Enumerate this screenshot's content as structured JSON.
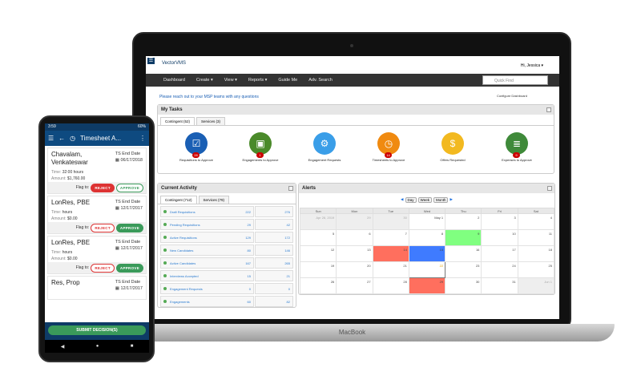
{
  "laptop": {
    "brand": "MacBook"
  },
  "app": {
    "logo": "VectorVMS",
    "user": "Hi, Jessica ▾",
    "nav": [
      "Dashboard",
      "Create ▾",
      "View ▾",
      "Reports ▾",
      "Guide Me",
      "Adv. Search"
    ],
    "quick_find_placeholder": "Quick Find",
    "message": "Please reach out to your MSP teams with any questions",
    "configure": "Configure Dashboard"
  },
  "my_tasks": {
    "title": "My Tasks",
    "tabs": [
      "Contingent (52)",
      "Services (3)"
    ],
    "items": [
      {
        "label": "Requisitions to Approve",
        "badge": "28",
        "color": "#1a5fb4",
        "icon": "checkbox-icon"
      },
      {
        "label": "Engagements to Approve",
        "badge": "1",
        "color": "#4a8a2a",
        "icon": "id-card-icon"
      },
      {
        "label": "Engagement Requests",
        "badge": "",
        "color": "#3a9ee8",
        "icon": "user-gear-icon"
      },
      {
        "label": "Timesheets to Approve",
        "badge": "14",
        "color": "#f08a10",
        "icon": "clock-icon"
      },
      {
        "label": "Offers Requested",
        "badge": "",
        "color": "#f2b920",
        "icon": "briefcase-icon"
      },
      {
        "label": "Expenses to Approve",
        "badge": "9",
        "color": "#3f8a3a",
        "icon": "receipt-icon"
      }
    ]
  },
  "current_activity": {
    "title": "Current Activity",
    "tabs": [
      "Contingent (712)",
      "Services (79)"
    ],
    "rows": [
      {
        "label": "Draft Requisitions",
        "a": "222",
        "b": "276"
      },
      {
        "label": "Pending Requisitions",
        "a": "29",
        "b": "42"
      },
      {
        "label": "Active Requisitions",
        "a": "129",
        "b": "172"
      },
      {
        "label": "New Candidates",
        "a": "80",
        "b": "146"
      },
      {
        "label": "Active Candidates",
        "a": "167",
        "b": "265"
      },
      {
        "label": "Interviews Accepted",
        "a": "15",
        "b": "21"
      },
      {
        "label": "Engagement Requests",
        "a": "0",
        "b": "0"
      },
      {
        "label": "Engagements",
        "a": "60",
        "b": "82"
      }
    ]
  },
  "alerts": {
    "title": "Alerts",
    "views": [
      "Day",
      "Week",
      "Month"
    ],
    "days": [
      "Sun",
      "Mon",
      "Tue",
      "Wed",
      "Thu",
      "Fri",
      "Sat"
    ],
    "weeks": [
      [
        "Apr 28, 2019",
        "29",
        "30",
        "May 1",
        "2",
        "3",
        "4"
      ],
      [
        "5",
        "6",
        "7",
        "8",
        "9",
        "10",
        "11"
      ],
      [
        "12",
        "13",
        "14",
        "15",
        "16",
        "17",
        "18"
      ],
      [
        "19",
        "20",
        "21",
        "22",
        "23",
        "24",
        "25"
      ],
      [
        "26",
        "27",
        "28",
        "29",
        "30",
        "31",
        "Jun 1"
      ]
    ],
    "highlights": {
      "9": "#80ff80",
      "14": "#ff6f5e",
      "15": "#3f7bff",
      "29": "#ff6f5e"
    },
    "today": "22"
  },
  "phone": {
    "time": "3:59",
    "battery": "60%",
    "title": "Timesheet A...",
    "date_label": "TS End Date",
    "flag_label": "Flag to:",
    "reject": "REJECT",
    "approve": "APPROVE",
    "time_label": "Time:",
    "amount_label": "Amount:",
    "cards": [
      {
        "name": "Chavalam, Venkateswar",
        "date": "06/17/2018",
        "time": "32:00 hours",
        "amount": "$1,760.00",
        "flag": "reject"
      },
      {
        "name": "LonRes, PBE",
        "date": "12/17/2017",
        "time": "hours",
        "amount": "$0.00",
        "flag": "approve"
      },
      {
        "name": "LonRes, PBE",
        "date": "12/17/2017",
        "time": "hours",
        "amount": "$0.00",
        "flag": "approve"
      },
      {
        "name": "Res, Prop",
        "date": "12/17/2017"
      }
    ],
    "submit": "SUBMIT DECISION(S)"
  }
}
